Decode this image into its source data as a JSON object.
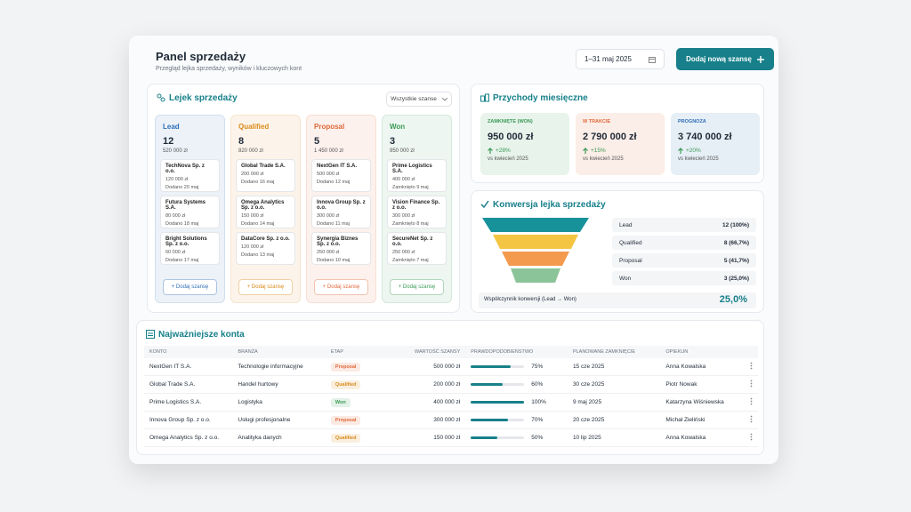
{
  "header": {
    "title": "Panel sprzedaży",
    "subtitle": "Przegląd lejka sprzedaży, wyników i kluczowych kont",
    "date_range": "1–31 maj 2025",
    "button": "Dodaj nową szansę"
  },
  "pipeline": {
    "title": "Lejek sprzedaży",
    "filter": "Wszystkie szanse",
    "columns": [
      {
        "name": "Lead",
        "color": "#2f6fb5",
        "count": 12,
        "amount": "520 000 zł",
        "add": "+ Dodaj szansę",
        "deals": [
          {
            "name": "TechNova Sp. z o.o.",
            "value": "120 000 zł",
            "date": "Dodano 20 maj"
          },
          {
            "name": "Futura Systems S.A.",
            "value": "80 000 zł",
            "date": "Dodano 18 maj"
          },
          {
            "name": "Bright Solutions Sp. z o.o.",
            "value": "60 000 zł",
            "date": "Dodano 17 maj"
          }
        ]
      },
      {
        "name": "Qualified",
        "color": "#d98a1a",
        "count": 8,
        "amount": "820 000 zł",
        "add": "+ Dodaj szansę",
        "deals": [
          {
            "name": "Global Trade S.A.",
            "value": "200 000 zł",
            "date": "Dodano 16 maj"
          },
          {
            "name": "Omega Analytics Sp. z o.o.",
            "value": "150 000 zł",
            "date": "Dodano 14 maj"
          },
          {
            "name": "DataCore Sp. z o.o.",
            "value": "120 000 zł",
            "date": "Dodano 13 maj"
          }
        ]
      },
      {
        "name": "Proposal",
        "color": "#e0683a",
        "count": 5,
        "amount": "1 450 000 zł",
        "add": "+ Dodaj szansę",
        "deals": [
          {
            "name": "NextGen IT S.A.",
            "value": "500 000 zł",
            "date": "Dodano 12 maj"
          },
          {
            "name": "Innova Group Sp. z o.o.",
            "value": "300 000 zł",
            "date": "Dodano 11 maj"
          },
          {
            "name": "Synergia Biznes Sp. z o.o.",
            "value": "250 000 zł",
            "date": "Dodano 10 maj"
          }
        ]
      },
      {
        "name": "Won",
        "color": "#3a9a55",
        "count": 3,
        "amount": "950 000 zł",
        "add": "+ Dodaj szansę",
        "deals": [
          {
            "name": "Prime Logistics S.A.",
            "value": "400 000 zł",
            "date": "Zamknięto 9 maj"
          },
          {
            "name": "Vision Finance Sp. z o.o.",
            "value": "300 000 zł",
            "date": "Zamknięto 8 maj"
          },
          {
            "name": "SecureNet Sp. z o.o.",
            "value": "250 000 zł",
            "date": "Zamknięto 7 maj"
          }
        ]
      }
    ]
  },
  "revenue": {
    "title": "Przychody miesięczne",
    "cards": [
      {
        "label": "ZAMKNIĘTE (WON)",
        "color": "#3a9a55",
        "value": "950 000 zł",
        "change": "+28%",
        "compare": "vs kwiecień 2025"
      },
      {
        "label": "W TRAKCIE",
        "color": "#e0683a",
        "value": "2 790 000 zł",
        "change": "+15%",
        "compare": "vs kwiecień 2025"
      },
      {
        "label": "PROGNOZA",
        "color": "#2f6fb5",
        "value": "3 740 000 zł",
        "change": "+20%",
        "compare": "vs kwiecień 2025"
      }
    ]
  },
  "conversion": {
    "title": "Konwersja lejka sprzedaży",
    "rows": [
      {
        "stage": "Lead",
        "value": "12 (100%)"
      },
      {
        "stage": "Qualified",
        "value": "8 (66,7%)"
      },
      {
        "stage": "Proposal",
        "value": "5 (41,7%)"
      },
      {
        "stage": "Won",
        "value": "3 (25,0%)"
      }
    ],
    "footer_label": "Współczynnik konwersji (Lead → Won)",
    "footer_value": "25,0%"
  },
  "accounts": {
    "title": "Najważniejsze konta",
    "columns": [
      "KONTO",
      "BRANŻA",
      "ETAP",
      "WARTOŚĆ SZANSY",
      "PRAWDOPODOBIEŃSTWO",
      "PLANOWANE ZAMKNIĘCIE",
      "OPIEKUN"
    ],
    "stage_colors": {
      "Proposal": "#e0683a",
      "Qualified": "#d98a1a",
      "Won": "#3a9a55"
    },
    "rows": [
      [
        "NextGen IT S.A.",
        "Technologie informacyjne",
        "Proposal",
        "500 000 zł",
        {
          "value": 75,
          "label": "75%"
        },
        "15 cze 2025",
        "Anna Kowalska"
      ],
      [
        "Global Trade S.A.",
        "Handel hurtowy",
        "Qualified",
        "200 000 zł",
        {
          "value": 60,
          "label": "60%"
        },
        "30 cze 2025",
        "Piotr Nowak"
      ],
      [
        "Prime Logistics S.A.",
        "Logistyka",
        "Won",
        "400 000 zł",
        {
          "value": 100,
          "label": "100%"
        },
        "9 maj 2025",
        "Katarzyna Wiśniewska"
      ],
      [
        "Innova Group Sp. z o.o.",
        "Usługi profesjonalne",
        "Proposal",
        "300 000 zł",
        {
          "value": 70,
          "label": "70%"
        },
        "20 cze 2025",
        "Michał Zieliński"
      ],
      [
        "Omega Analytics Sp. z o.o.",
        "Analityka danych",
        "Qualified",
        "150 000 zł",
        {
          "value": 50,
          "label": "50%"
        },
        "10 lip 2025",
        "Anna Kowalska"
      ]
    ]
  }
}
